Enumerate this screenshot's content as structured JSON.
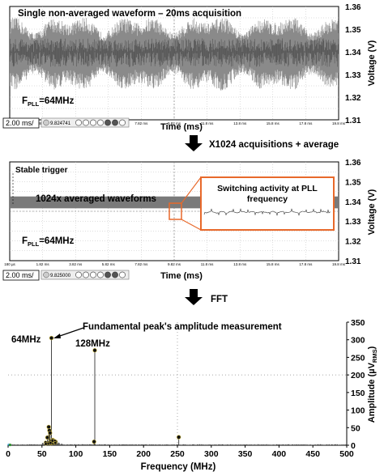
{
  "colors": {
    "waveform": "#8a8a8a",
    "waveform_dark": "#555555",
    "avg_band": "#7a7a7a",
    "accent_orange": "#e8692b",
    "spectrum": "#333333",
    "dot_green": "#2f8f2f",
    "dot_yellow": "#d8c24a"
  },
  "panel1": {
    "title": "Single non-averaged waveform – 20ms acquisition",
    "fpll_main": "F",
    "fpll_sub": "PLL",
    "fpll_val": "=64MHz",
    "controls": {
      "timebase": "2.00 ms/",
      "readout": "9.824741"
    }
  },
  "panel2": {
    "stable_trigger": "Stable trigger",
    "avg_label": "1024x averaged waveforms",
    "zoom_label_1": "Switching activity at PLL",
    "zoom_label_2": "frequency",
    "fpll_main": "F",
    "fpll_sub": "PLL",
    "fpll_val": "=64MHz",
    "controls": {
      "timebase": "2.00 ms/",
      "readout": "9.825000"
    }
  },
  "arrows": {
    "step1": "X1024 acquisitions + average",
    "step2": "FFT"
  },
  "chart_data": [
    {
      "type": "line",
      "title": "Single non-averaged waveform – 20ms acquisition",
      "xlabel": "Time (ms)",
      "ylabel": "Voltage (V)",
      "xlim": [
        0,
        20
      ],
      "ylim": [
        1.31,
        1.36
      ],
      "yticks": [
        1.31,
        1.32,
        1.33,
        1.34,
        1.35,
        1.36
      ],
      "xticks_shown": [
        "180 µs",
        "1.82 ms",
        "3.82 ms",
        "5.82 ms",
        "7.82 ms",
        "9.82 ms",
        "11.8 ms",
        "13.8 ms",
        "15.8 ms",
        "17.8 ms",
        "19.8 ms"
      ],
      "series": [
        {
          "mean": 1.34,
          "noise_band": [
            1.321,
            1.357
          ]
        }
      ],
      "grid": true
    },
    {
      "type": "line",
      "xlabel": "Time (ms)",
      "ylabel": "Voltage (V)",
      "xlim": [
        0,
        20
      ],
      "ylim": [
        1.31,
        1.36
      ],
      "yticks": [
        1.31,
        1.32,
        1.33,
        1.34,
        1.35,
        1.36
      ],
      "xticks_shown": [
        "180 µs",
        "1.82 ms",
        "3.82 ms",
        "5.82 ms",
        "7.82 ms",
        "9.82 ms",
        "11.8 ms",
        "13.8 ms",
        "15.8 ms",
        "17.8 ms",
        "19.8 ms"
      ],
      "series": [
        {
          "mean": 1.34,
          "band": [
            1.3365,
            1.3425
          ]
        }
      ],
      "grid": true
    },
    {
      "type": "bar",
      "xlabel": "Frequency (MHz)",
      "ylabel": "Amplitude (µV",
      "ylabel_sub": "RMS",
      "ylabel_end": ")",
      "xlim": [
        0,
        500
      ],
      "ylim": [
        0,
        350
      ],
      "xticks": [
        0,
        50,
        100,
        150,
        200,
        250,
        300,
        350,
        400,
        450,
        500
      ],
      "yticks": [
        0,
        50,
        100,
        150,
        200,
        250,
        300,
        350
      ],
      "annotations": [
        {
          "text": "Fundamental peak's amplitude measurement"
        },
        {
          "text": "64MHz"
        },
        {
          "text": "128MHz"
        }
      ],
      "peaks": [
        {
          "x": 64,
          "y": 305,
          "label": "64MHz"
        },
        {
          "x": 128,
          "y": 270,
          "label": "128MHz"
        },
        {
          "x": 252,
          "y": 23
        },
        {
          "x": 60,
          "y": 52
        },
        {
          "x": 61,
          "y": 42
        },
        {
          "x": 62,
          "y": 35
        },
        {
          "x": 58,
          "y": 22
        },
        {
          "x": 66,
          "y": 15
        },
        {
          "x": 70,
          "y": 10
        },
        {
          "x": 127,
          "y": 10
        }
      ],
      "grid": true
    }
  ]
}
